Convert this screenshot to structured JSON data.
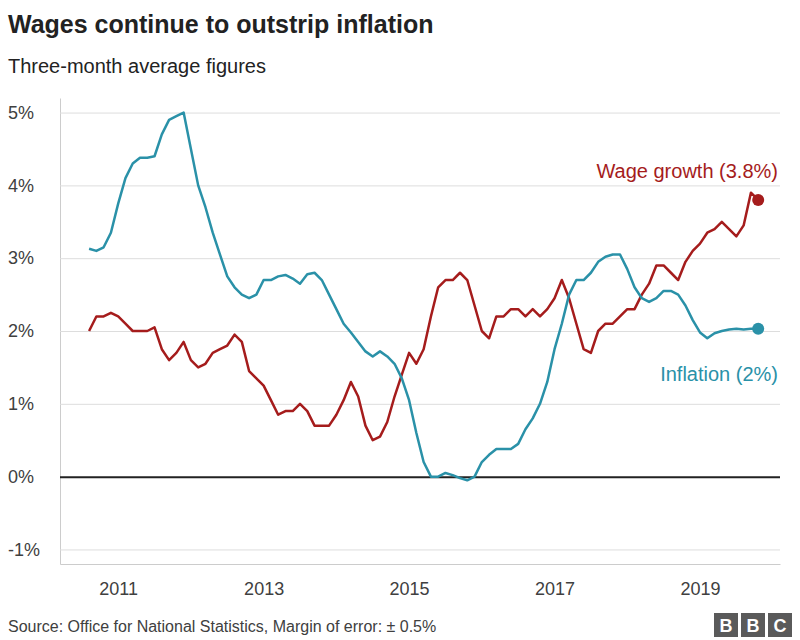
{
  "chart_data": {
    "type": "line",
    "title": "Wages continue to outstrip inflation",
    "subtitle": "Three-month average figures",
    "source": "Source: Office for National Statistics, Margin of error: ± 0.5%",
    "logo": "BBC",
    "x": [
      2010.6,
      2010.7,
      2010.8,
      2010.9,
      2011,
      2011.1,
      2011.2,
      2011.3,
      2011.4,
      2011.5,
      2011.6,
      2011.7,
      2011.8,
      2011.9,
      2012,
      2012.1,
      2012.2,
      2012.3,
      2012.4,
      2012.5,
      2012.6,
      2012.7,
      2012.8,
      2012.9,
      2013,
      2013.1,
      2013.2,
      2013.3,
      2013.4,
      2013.5,
      2013.6,
      2013.7,
      2013.8,
      2013.9,
      2014,
      2014.1,
      2014.2,
      2014.3,
      2014.4,
      2014.5,
      2014.6,
      2014.7,
      2014.8,
      2014.9,
      2015,
      2015.1,
      2015.2,
      2015.3,
      2015.4,
      2015.5,
      2015.6,
      2015.7,
      2015.8,
      2015.9,
      2016,
      2016.1,
      2016.2,
      2016.3,
      2016.4,
      2016.5,
      2016.6,
      2016.7,
      2016.8,
      2016.9,
      2017,
      2017.1,
      2017.2,
      2017.3,
      2017.4,
      2017.5,
      2017.6,
      2017.7,
      2017.8,
      2017.9,
      2018,
      2018.1,
      2018.2,
      2018.3,
      2018.4,
      2018.5,
      2018.6,
      2018.7,
      2018.8,
      2018.9,
      2019,
      2019.1,
      2019.2,
      2019.3,
      2019.4,
      2019.5,
      2019.6,
      2019.7,
      2019.8
    ],
    "series": [
      {
        "name": "Wage growth (3.8%)",
        "color": "#a51c1c",
        "values": [
          2.0,
          2.2,
          2.2,
          2.25,
          2.2,
          2.1,
          2.0,
          2.0,
          2.0,
          2.05,
          1.75,
          1.6,
          1.7,
          1.85,
          1.6,
          1.5,
          1.55,
          1.7,
          1.75,
          1.8,
          1.95,
          1.85,
          1.45,
          1.35,
          1.25,
          1.05,
          0.85,
          0.9,
          0.9,
          1.0,
          0.9,
          0.7,
          0.7,
          0.7,
          0.85,
          1.05,
          1.3,
          1.1,
          0.7,
          0.5,
          0.55,
          0.75,
          1.1,
          1.4,
          1.7,
          1.55,
          1.75,
          2.2,
          2.6,
          2.7,
          2.7,
          2.8,
          2.7,
          2.35,
          2.0,
          1.9,
          2.2,
          2.2,
          2.3,
          2.3,
          2.2,
          2.3,
          2.2,
          2.3,
          2.45,
          2.7,
          2.45,
          2.1,
          1.75,
          1.7,
          2.0,
          2.1,
          2.1,
          2.2,
          2.3,
          2.3,
          2.5,
          2.65,
          2.9,
          2.9,
          2.8,
          2.7,
          2.95,
          3.1,
          3.2,
          3.35,
          3.4,
          3.5,
          3.4,
          3.3,
          3.45,
          3.9,
          3.8
        ]
      },
      {
        "name": "Inflation (2%)",
        "color": "#2a91a8",
        "values": [
          3.13,
          3.1,
          3.15,
          3.35,
          3.75,
          4.1,
          4.3,
          4.38,
          4.38,
          4.4,
          4.7,
          4.9,
          4.95,
          5.0,
          4.5,
          4.0,
          3.7,
          3.35,
          3.05,
          2.75,
          2.6,
          2.5,
          2.45,
          2.5,
          2.7,
          2.7,
          2.75,
          2.77,
          2.72,
          2.65,
          2.78,
          2.8,
          2.7,
          2.5,
          2.3,
          2.1,
          1.98,
          1.85,
          1.72,
          1.65,
          1.72,
          1.65,
          1.55,
          1.35,
          1.05,
          0.6,
          0.2,
          0.0,
          0.0,
          0.05,
          0.02,
          -0.02,
          -0.05,
          0.0,
          0.2,
          0.3,
          0.38,
          0.38,
          0.38,
          0.45,
          0.65,
          0.8,
          1.0,
          1.3,
          1.75,
          2.1,
          2.5,
          2.7,
          2.7,
          2.8,
          2.95,
          3.02,
          3.05,
          3.05,
          2.85,
          2.6,
          2.45,
          2.4,
          2.45,
          2.55,
          2.55,
          2.5,
          2.35,
          2.15,
          1.98,
          1.9,
          1.97,
          2.0,
          2.02,
          2.03,
          2.02,
          2.03,
          2.03
        ]
      }
    ],
    "xlim": [
      2010.2,
      2020.1
    ],
    "xticks": [
      2011,
      2013,
      2015,
      2017,
      2019
    ],
    "ylim": [
      -1.2,
      5.2
    ],
    "yticks": [
      {
        "value": -1,
        "label": "-1%"
      },
      {
        "value": 0,
        "label": "0%"
      },
      {
        "value": 1,
        "label": "1%"
      },
      {
        "value": 2,
        "label": "2%"
      },
      {
        "value": 3,
        "label": "3%"
      },
      {
        "value": 4,
        "label": "4%"
      },
      {
        "value": 5,
        "label": "5%"
      }
    ],
    "grid": true
  }
}
